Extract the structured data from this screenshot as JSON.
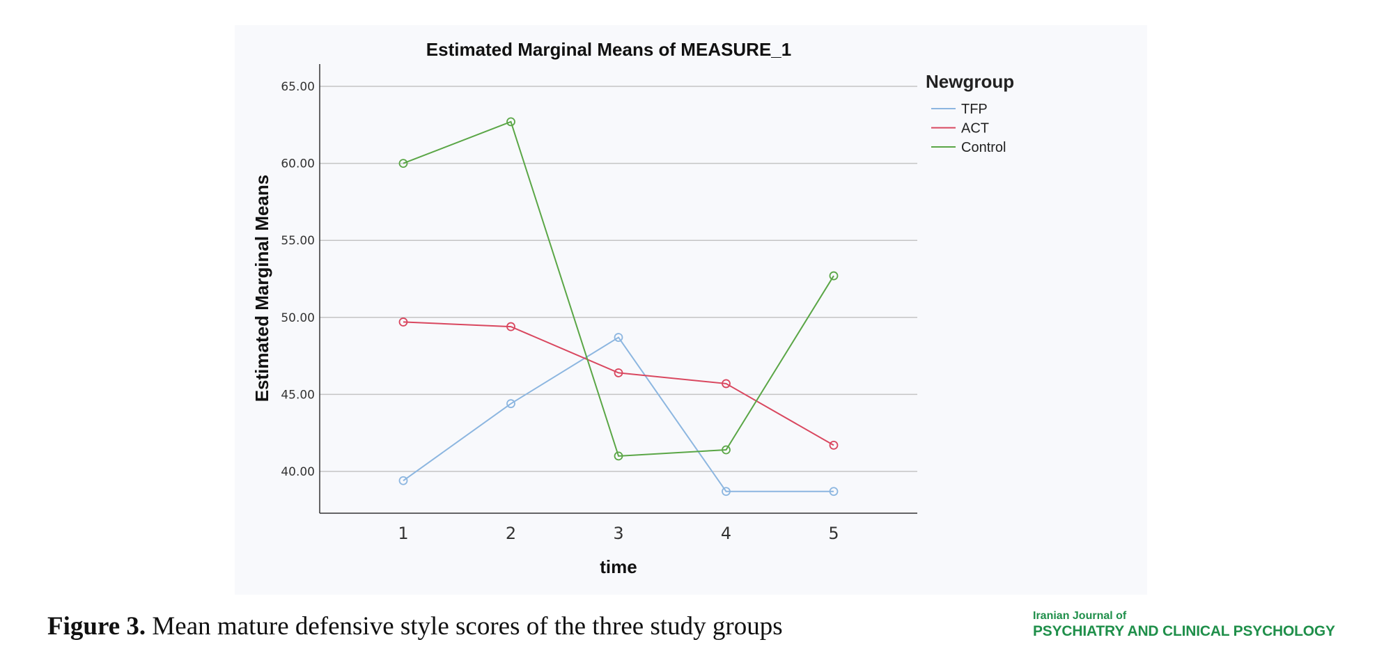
{
  "chart_data": {
    "type": "line",
    "title": "Estimated Marginal Means of MEASURE_1",
    "xlabel": "time",
    "ylabel": "Estimated Marginal Means",
    "categories": [
      "1",
      "2",
      "3",
      "4",
      "5"
    ],
    "yticks": [
      "65.00",
      "60.00",
      "55.00",
      "50.00",
      "45.00",
      "40.00"
    ],
    "ylim": [
      37.3,
      67.2
    ],
    "grid": true,
    "legend_title": "Newgroup",
    "legend_position": "top-right",
    "series": [
      {
        "name": "TFP",
        "color": "#8cb6e0",
        "values": [
          39.4,
          44.4,
          48.7,
          38.7,
          38.7
        ]
      },
      {
        "name": "ACT",
        "color": "#d9475f",
        "values": [
          49.7,
          49.4,
          46.4,
          45.7,
          41.7
        ]
      },
      {
        "name": "Control",
        "color": "#5aa646",
        "values": [
          60.0,
          62.7,
          41.0,
          41.4,
          52.7
        ]
      }
    ]
  },
  "caption": {
    "label": "Figure 3.",
    "text": " Mean mature defensive style scores of the three study groups"
  },
  "journal": {
    "line1": "Iranian Journal of",
    "line2": "PSYCHIATRY AND CLINICAL PSYCHOLOGY"
  }
}
